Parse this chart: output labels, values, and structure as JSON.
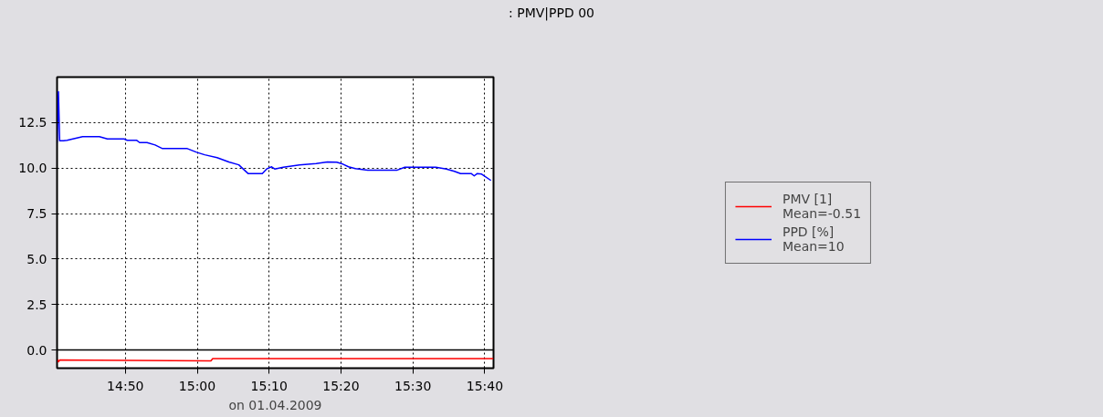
{
  "chart_data": {
    "type": "line",
    "title": ": PMV|PPD 00",
    "xlabel": "on 01.04.2009",
    "xlim": [
      14.675,
      15.687
    ],
    "ylim": [
      -1.0,
      15.0
    ],
    "xticks": [
      {
        "value": 14.8333,
        "label": "14:50"
      },
      {
        "value": 15.0,
        "label": "15:00"
      },
      {
        "value": 15.1667,
        "label": "15:10"
      },
      {
        "value": 15.3333,
        "label": "15:20"
      },
      {
        "value": 15.5,
        "label": "15:30"
      },
      {
        "value": 15.6667,
        "label": "15:40"
      }
    ],
    "yticks": [
      {
        "value": 0,
        "label": "0.0"
      },
      {
        "value": 2.5,
        "label": "2.5"
      },
      {
        "value": 5,
        "label": "5.0"
      },
      {
        "value": 7.5,
        "label": "7.5"
      },
      {
        "value": 10,
        "label": "10.0"
      },
      {
        "value": 12.5,
        "label": "12.5"
      }
    ],
    "series": [
      {
        "name": "PMV [1]",
        "color": "#ff0000",
        "x": [
          14.675,
          14.6782,
          14.681,
          15.0316,
          15.0359,
          15.6868
        ],
        "values": [
          -0.5,
          -0.65,
          -0.55,
          -0.6,
          -0.47,
          -0.47
        ]
      },
      {
        "name": "PPD [%]",
        "color": "#0000ff",
        "x": [
          14.675,
          14.6782,
          14.681,
          14.6897,
          14.6983,
          14.7342,
          14.773,
          14.7917,
          14.8305,
          14.8376,
          14.8592,
          14.8664,
          14.8836,
          14.9023,
          14.9195,
          14.977,
          14.9986,
          15.0172,
          15.046,
          15.0747,
          15.0963,
          15.1178,
          15.1509,
          15.1609,
          15.1724,
          15.1796,
          15.1997,
          15.2371,
          15.2759,
          15.3017,
          15.3233,
          15.3376,
          15.3506,
          15.3664,
          15.3951,
          15.4626,
          15.4813,
          15.5532,
          15.5776,
          15.5963,
          15.6106,
          15.6351,
          15.6422,
          15.6494,
          15.6595,
          15.681
        ],
        "values": [
          11.4,
          14.2,
          11.5,
          11.5,
          11.53,
          11.73,
          11.73,
          11.6,
          11.6,
          11.53,
          11.53,
          11.4,
          11.4,
          11.27,
          11.07,
          11.07,
          10.87,
          10.73,
          10.57,
          10.32,
          10.18,
          9.7,
          9.7,
          9.95,
          10.07,
          9.95,
          10.05,
          10.17,
          10.25,
          10.33,
          10.32,
          10.22,
          10.07,
          9.97,
          9.88,
          9.88,
          10.05,
          10.05,
          9.95,
          9.82,
          9.7,
          9.7,
          9.57,
          9.7,
          9.67,
          9.32
        ]
      }
    ],
    "annotations": [
      "Mean=-0.51",
      "Mean=10"
    ],
    "ref_lines": [
      {
        "axis": "y",
        "value": 0,
        "color": "#000000"
      }
    ],
    "grid": true,
    "legend": "right",
    "line_style": "solid"
  }
}
